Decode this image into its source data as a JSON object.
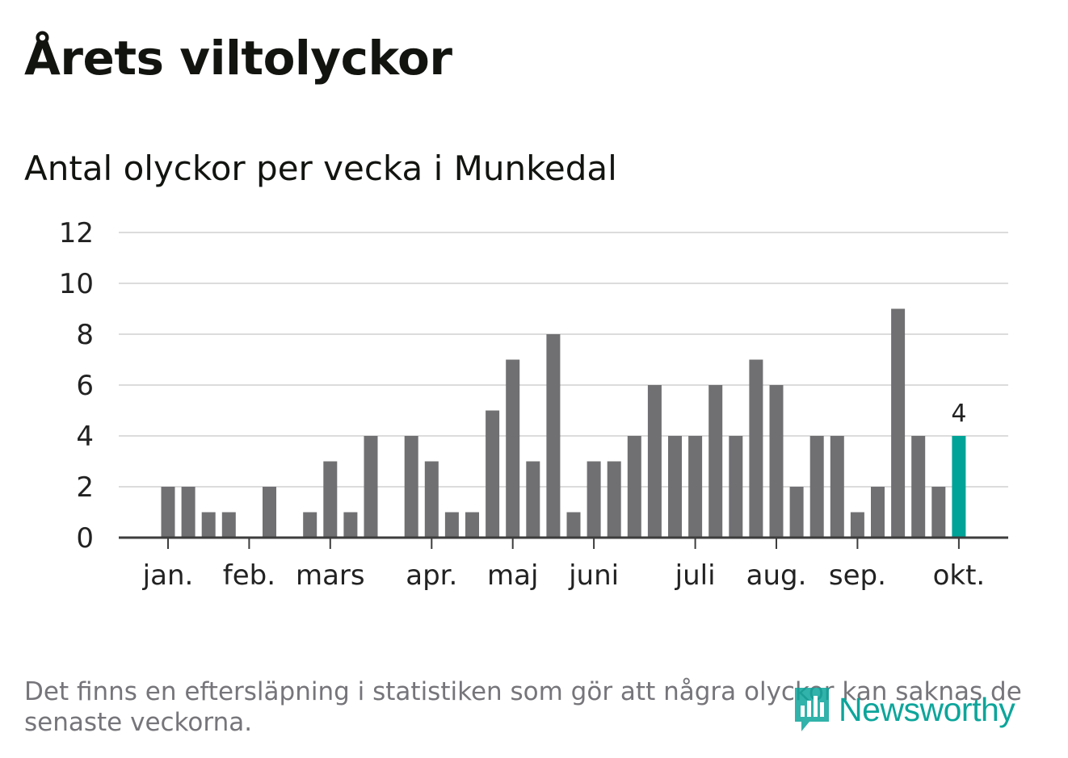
{
  "title": "Årets viltolyckor",
  "subtitle": "Antal olyckor per vecka i Munkedal",
  "footnote": "Det finns en eftersläpning i statistiken som gör att några olyckor kan saknas de senaste veckorna.",
  "logo": {
    "text": "Newsworthy",
    "icon": "newsworthy-logo-icon"
  },
  "colors": {
    "bar": "#707073",
    "highlight": "#00a397",
    "grid": "#dcdcdc",
    "axis": "#3d3d3d",
    "text": "#222222",
    "brand": "#0da59b"
  },
  "chart_data": {
    "type": "bar",
    "title": "Antal olyckor per vecka i Munkedal",
    "xlabel": "",
    "ylabel": "",
    "ylim": [
      0,
      12
    ],
    "yticks": [
      "0",
      "2",
      "4",
      "6",
      "8",
      "10",
      "12"
    ],
    "grid": true,
    "weeks": [
      1,
      2,
      3,
      4,
      5,
      6,
      7,
      8,
      9,
      10,
      11,
      12,
      13,
      14,
      15,
      16,
      17,
      18,
      19,
      20,
      21,
      22,
      23,
      24,
      25,
      26,
      27,
      28,
      29,
      30,
      31,
      32,
      33,
      34,
      35,
      36,
      37,
      38,
      39,
      40
    ],
    "values": [
      2,
      2,
      1,
      1,
      0,
      2,
      0,
      1,
      3,
      1,
      4,
      0,
      4,
      3,
      1,
      1,
      5,
      7,
      3,
      8,
      1,
      3,
      3,
      4,
      6,
      4,
      4,
      6,
      4,
      7,
      6,
      2,
      4,
      4,
      1,
      2,
      9,
      4,
      2,
      4
    ],
    "highlight_index": 39,
    "highlight_label": "4",
    "month_labels": [
      {
        "label": "jan.",
        "week": 1
      },
      {
        "label": "feb.",
        "week": 5
      },
      {
        "label": "mars",
        "week": 9
      },
      {
        "label": "apr.",
        "week": 14
      },
      {
        "label": "maj",
        "week": 18
      },
      {
        "label": "juni",
        "week": 22
      },
      {
        "label": "juli",
        "week": 27
      },
      {
        "label": "aug.",
        "week": 31
      },
      {
        "label": "sep.",
        "week": 35
      },
      {
        "label": "okt.",
        "week": 40
      }
    ]
  }
}
